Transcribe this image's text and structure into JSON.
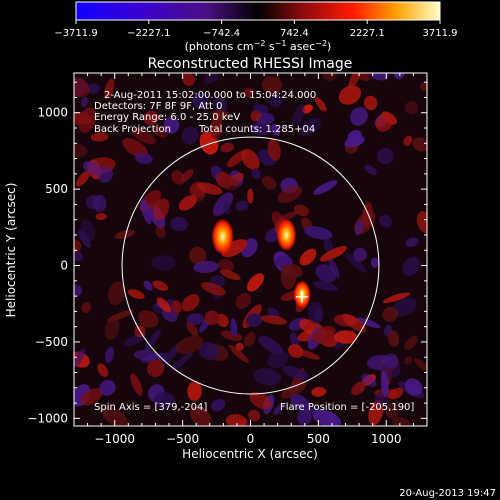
{
  "chart_data": {
    "type": "heatmap",
    "title": "Reconstructed RHESSI Image",
    "xlabel": "Heliocentric X (arcsec)",
    "ylabel": "Heliocentric Y (arcsec)",
    "xlim": [
      -1300,
      1300
    ],
    "ylim": [
      -1050,
      1260
    ],
    "xticks": [
      -1000,
      -500,
      0,
      500,
      1000
    ],
    "yticks": [
      1000,
      500,
      0,
      -500,
      -1000
    ],
    "xtick_labels": [
      "−1000",
      "−500",
      "0",
      "500",
      "1000"
    ],
    "ytick_labels": [
      "1000",
      "500",
      "0",
      "−500",
      "−1000"
    ],
    "colorbar": {
      "ticks": [
        -3711.9,
        -2227.1,
        -742.4,
        742.4,
        2227.1,
        3711.9
      ],
      "tick_labels": [
        "−3711.9",
        "−2227.1",
        "−742.4",
        "742.4",
        "2227.1",
        "3711.9"
      ],
      "range": [
        -3711.9,
        3711.9
      ],
      "unit_prefix": "(photons cm",
      "unit_exp1": "−2",
      "unit_mid": " s",
      "unit_exp2": "−1",
      "unit_mid2": " asec",
      "unit_exp3": "−2",
      "unit_suffix": ")"
    },
    "solar_disk_radius_arcsec": 946,
    "annotations": [
      "2-Aug-2011 15:02:00.000 to 15:04:24.000",
      "Detectors: 7F 8F 9F, Att 0",
      "Energy Range: 6.0 - 25.0 keV",
      "Back Projection",
      "Total counts: 1.285+04"
    ],
    "spin_axis_label": "Spin Axis = [379,-204]",
    "spin_axis": [
      379,
      -204
    ],
    "flare_position_label": "Flare Position = [-205,190]",
    "flare_position": [
      -205,
      190
    ],
    "sources": [
      {
        "x": -205,
        "y": 190,
        "intensity": 3711.9
      },
      {
        "x": 265,
        "y": 200,
        "intensity": 3000
      },
      {
        "x": 380,
        "y": -190,
        "intensity": 2300
      }
    ],
    "footer": "20-Aug-2013 19:47"
  }
}
